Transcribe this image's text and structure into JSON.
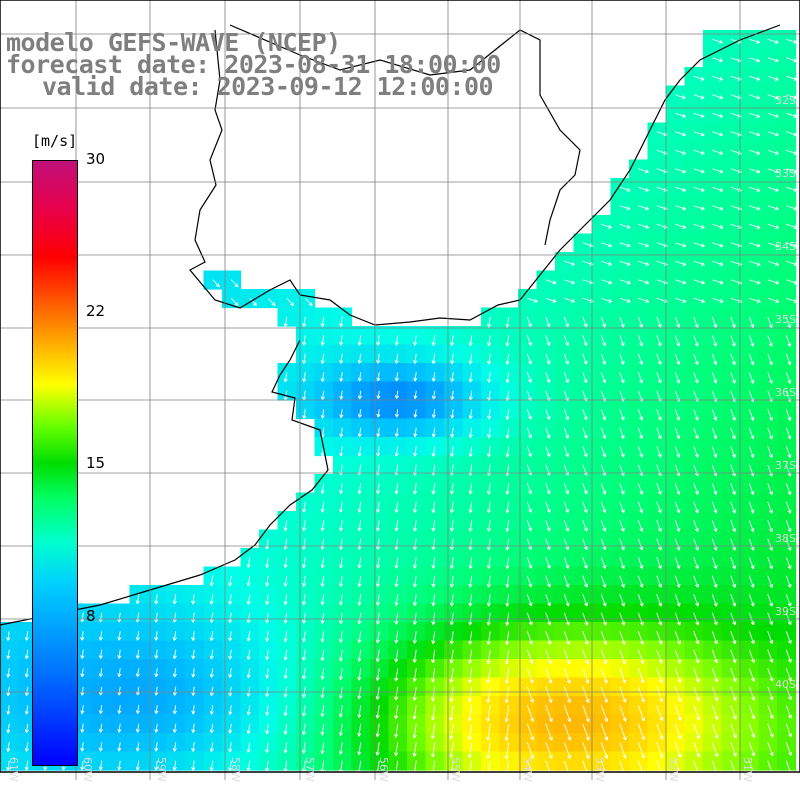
{
  "title": {
    "line1": "modelo GEFS-WAVE (NCEP)",
    "line2": "forecast date: 2023-08-31 18:00:00",
    "line3": "valid date: 2023-09-12 12:00:00"
  },
  "colorbar": {
    "units": "[m/s]",
    "min": 0,
    "max": 30,
    "labels": [
      "30",
      "22",
      "15",
      "8"
    ],
    "label_values": [
      30,
      22.5,
      15,
      7.5
    ],
    "colors": [
      "#0000ff",
      "#0070ff",
      "#00d0ff",
      "#00ffcc",
      "#00ff66",
      "#00dd00",
      "#66ff00",
      "#ffff00",
      "#ffaa00",
      "#ff5500",
      "#ff0000",
      "#c0107a"
    ]
  },
  "axes": {
    "lat_labels": [
      "32S",
      "33S",
      "34S",
      "35S",
      "36S",
      "37S",
      "38S",
      "39S",
      "40S"
    ],
    "lon_labels": [
      "61W",
      "60W",
      "59W",
      "58W",
      "57W",
      "56W",
      "55W",
      "54W",
      "53W",
      "52W",
      "51W"
    ]
  },
  "colors": {
    "land": "#ffffff",
    "coast": "#000000",
    "grid": "#808080",
    "arrows": "#ffffff",
    "title": "#7f7f7f"
  }
}
